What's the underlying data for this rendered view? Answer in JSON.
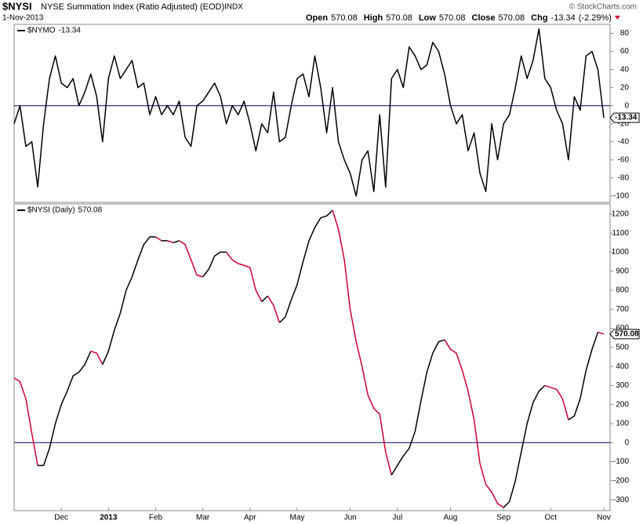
{
  "header": {
    "symbol": "$NYSI",
    "name": "NYSE Summation Index (Ratio Adjusted) (EOD)",
    "exchange": "INDX",
    "date": "1-Nov-2013",
    "quote": [
      {
        "label": "Open",
        "value": 570.08
      },
      {
        "label": "High",
        "value": 570.08
      },
      {
        "label": "Low",
        "value": 570.08
      },
      {
        "label": "Close",
        "value": 570.08
      }
    ],
    "change": {
      "label": "Chg",
      "value": -13.34,
      "pct_label": "(-2.29%)"
    },
    "credit": "© StockCharts.com"
  },
  "chart_data": [
    {
      "type": "line",
      "series": [
        {
          "name": "$NYMO",
          "color": "#000000",
          "values": [
            -20,
            0,
            -45,
            -40,
            -90,
            -20,
            30,
            55,
            25,
            20,
            30,
            0,
            15,
            35,
            10,
            -40,
            30,
            55,
            30,
            40,
            50,
            20,
            25,
            -10,
            10,
            -10,
            0,
            -10,
            5,
            -35,
            -45,
            0,
            5,
            15,
            25,
            10,
            -20,
            0,
            -10,
            5,
            -20,
            -50,
            -20,
            -30,
            15,
            -40,
            -35,
            0,
            30,
            35,
            10,
            55,
            20,
            -30,
            20,
            -40,
            -60,
            -75,
            -100,
            -60,
            -50,
            -95,
            -10,
            -90,
            30,
            40,
            20,
            65,
            55,
            40,
            45,
            70,
            60,
            35,
            0,
            -20,
            -10,
            -50,
            -30,
            -75,
            -95,
            -20,
            -60,
            -20,
            -10,
            20,
            55,
            30,
            50,
            85,
            30,
            20,
            -5,
            -20,
            -60,
            10,
            -5,
            55,
            60,
            40,
            -13.34
          ]
        }
      ],
      "ylim": [
        -107,
        90
      ],
      "yticks": [
        -100,
        -80,
        -60,
        -40,
        -20,
        0,
        20,
        40,
        60,
        80
      ],
      "zero_line": true,
      "zero_color": "#000066"
    },
    {
      "type": "direction_line",
      "rising_color": "#000000",
      "falling_color": "#cc0033",
      "categories": [
        null,
        null,
        null,
        null,
        null,
        null,
        null,
        null,
        "Dec",
        null,
        null,
        null,
        null,
        null,
        null,
        null,
        "2013",
        null,
        null,
        null,
        null,
        null,
        null,
        null,
        "Feb",
        null,
        null,
        null,
        null,
        null,
        null,
        null,
        "Mar",
        null,
        null,
        null,
        null,
        null,
        null,
        null,
        "Apr",
        null,
        null,
        null,
        null,
        null,
        null,
        null,
        "May",
        null,
        null,
        null,
        null,
        null,
        null,
        null,
        null,
        "Jun",
        null,
        null,
        null,
        null,
        null,
        null,
        null,
        "Jul",
        null,
        null,
        null,
        null,
        null,
        null,
        null,
        null,
        "Aug",
        null,
        null,
        null,
        null,
        null,
        null,
        null,
        null,
        "Sep",
        null,
        null,
        null,
        null,
        null,
        null,
        null,
        "Oct",
        null,
        null,
        null,
        null,
        null,
        null,
        null,
        null,
        "Nov"
      ],
      "series": [
        {
          "name": "$NYSI (Daily)",
          "values": [
            340,
            320,
            230,
            50,
            -120,
            -120,
            -30,
            100,
            200,
            270,
            350,
            370,
            410,
            480,
            470,
            410,
            480,
            590,
            680,
            800,
            870,
            960,
            1040,
            1080,
            1080,
            1060,
            1060,
            1050,
            1060,
            1040,
            960,
            880,
            870,
            910,
            980,
            1000,
            1000,
            960,
            940,
            930,
            920,
            800,
            740,
            770,
            720,
            630,
            660,
            750,
            830,
            950,
            1060,
            1130,
            1180,
            1190,
            1220,
            1120,
            960,
            700,
            530,
            400,
            250,
            180,
            150,
            -50,
            -170,
            -120,
            -70,
            -30,
            60,
            220,
            370,
            470,
            530,
            540,
            490,
            470,
            380,
            270,
            120,
            -110,
            -220,
            -260,
            -320,
            -340,
            -310,
            -200,
            -50,
            100,
            210,
            270,
            300,
            290,
            280,
            230,
            120,
            140,
            230,
            380,
            490,
            580,
            570.08
          ]
        }
      ],
      "ylim": [
        -357,
        1253
      ],
      "yticks": [
        -300,
        -200,
        -100,
        0,
        100,
        200,
        300,
        400,
        500,
        600,
        700,
        800,
        900,
        1000,
        1100,
        1200
      ],
      "zero_line": true,
      "zero_color": "#000066"
    }
  ]
}
